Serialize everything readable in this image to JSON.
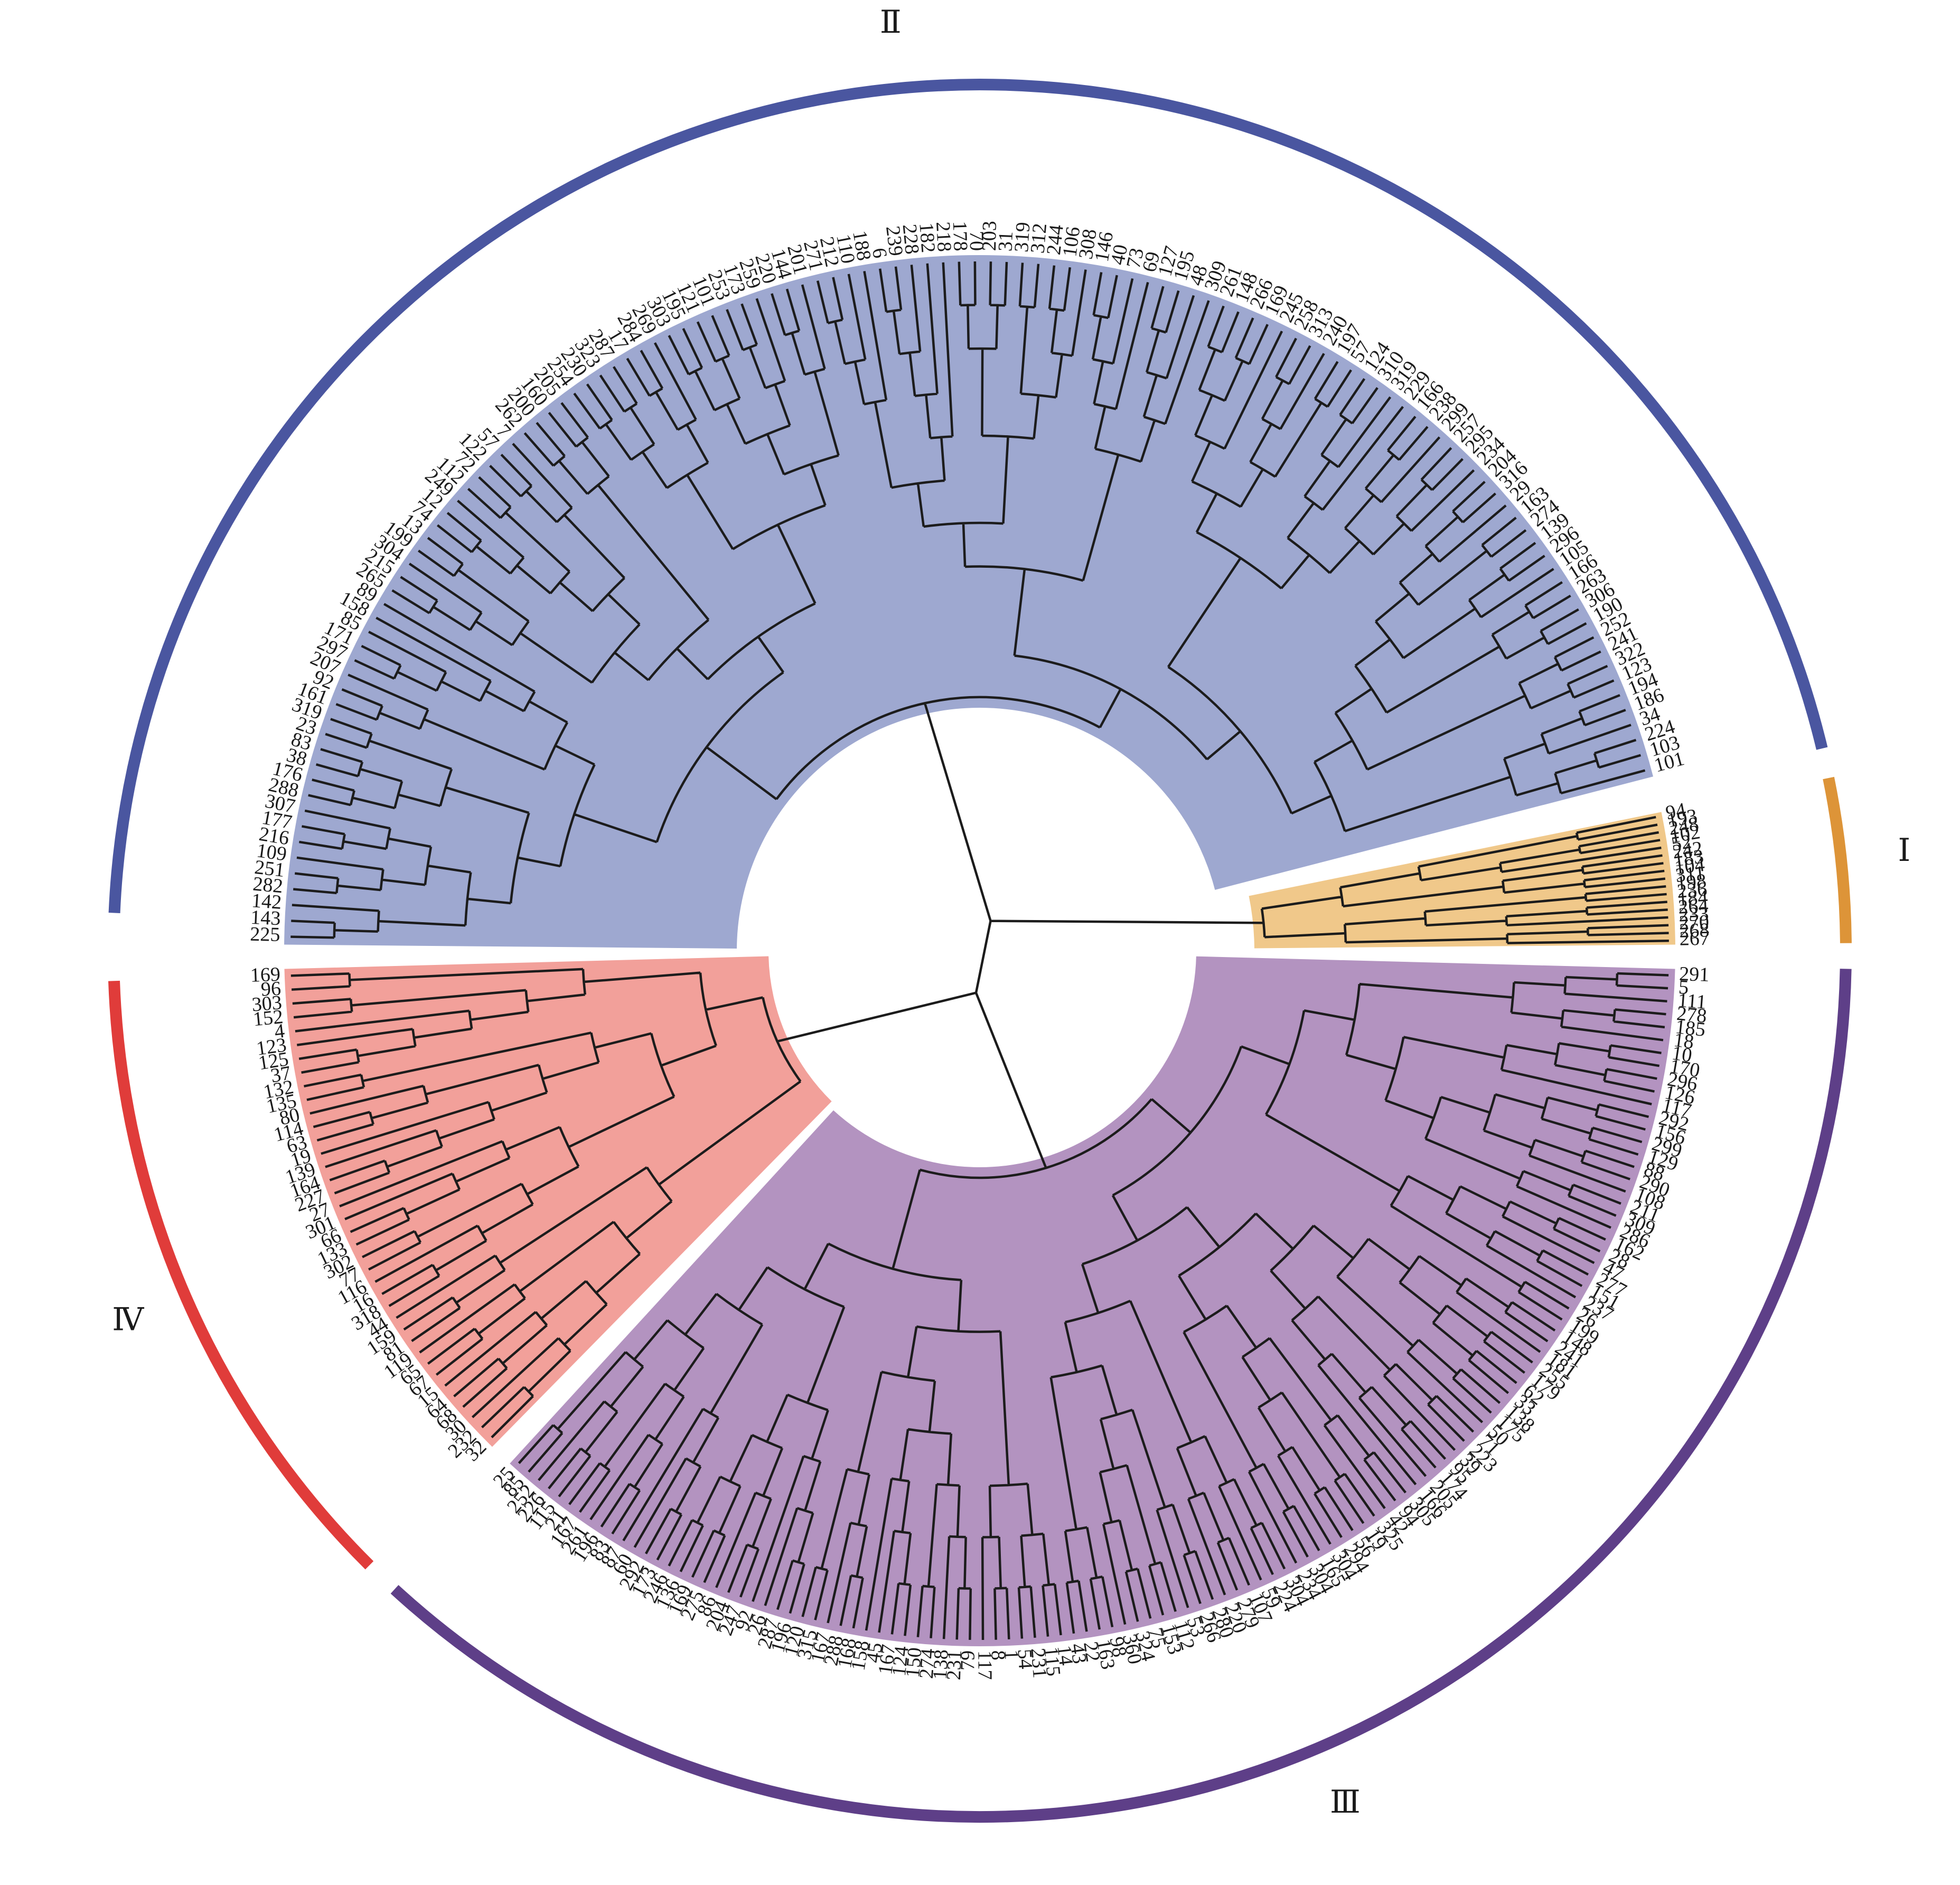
{
  "diagram": {
    "type": "circular-phylogenetic-tree",
    "clusters": [
      {
        "id": "I",
        "label": "Ⅰ",
        "color_fill": "#f0c88a",
        "color_ring": "#dd9438",
        "leaves": [
          "94",
          "193",
          "248",
          "102",
          "52",
          "242",
          "183",
          "104",
          "311",
          "198",
          "236",
          "184",
          "264",
          "233",
          "270",
          "268",
          "267"
        ]
      },
      {
        "id": "II",
        "label": "Ⅱ",
        "color_fill": "#9ea8d0",
        "color_ring": "#4a56a0",
        "leaves": [
          "225",
          "143",
          "142",
          "282",
          "251",
          "109",
          "216",
          "177",
          "307",
          "288",
          "176",
          "38",
          "83",
          "23",
          "319",
          "161",
          "92",
          "207",
          "297",
          "171",
          "85",
          "158",
          "89",
          "265",
          "215",
          "304",
          "199",
          "13",
          "74",
          "12",
          "249",
          "112",
          "72",
          "122",
          "57",
          "7",
          "262",
          "200",
          "160",
          "205",
          "254",
          "230",
          "323",
          "287",
          "17",
          "284",
          "269",
          "303",
          "195",
          "121",
          "101",
          "253",
          "173",
          "259",
          "220",
          "144",
          "201",
          "271",
          "212",
          "110",
          "188",
          "6",
          "239",
          "228",
          "182",
          "218",
          "178",
          "70",
          "203",
          "31",
          "319",
          "312",
          "244",
          "106",
          "308",
          "146",
          "40",
          "73",
          "69",
          "127",
          "195",
          "48",
          "309",
          "261",
          "148",
          "266",
          "169",
          "245",
          "258",
          "313",
          "240",
          "197",
          "57",
          "124",
          "310",
          "319",
          "229",
          "166",
          "238",
          "299",
          "257",
          "295",
          "234",
          "204",
          "316",
          "29",
          "163",
          "274",
          "139",
          "296",
          "105",
          "166",
          "263",
          "306",
          "190",
          "252",
          "241",
          "322",
          "123",
          "194",
          "186",
          "34",
          "224",
          "103",
          "101"
        ]
      },
      {
        "id": "III",
        "label": "Ⅲ",
        "color_fill": "#b393c0",
        "color_ring": "#5e3f88",
        "leaves": [
          "291",
          "5",
          "111",
          "278",
          "185",
          "18",
          "10",
          "170",
          "296",
          "126",
          "117",
          "292",
          "156",
          "299",
          "129",
          "88",
          "290",
          "108",
          "211",
          "309",
          "286",
          "162",
          "28",
          "47",
          "277",
          "151",
          "237",
          "26",
          "199",
          "148",
          "241",
          "181",
          "255",
          "179",
          "62",
          "33",
          "138",
          "175",
          "50",
          "71",
          "223",
          "39",
          "95",
          "174",
          "205",
          "166",
          "305",
          "94",
          "42",
          "325",
          "19",
          "56",
          "294",
          "304",
          "165",
          "304",
          "234",
          "304",
          "224",
          "59",
          "107",
          "279",
          "220",
          "280",
          "266",
          "53",
          "112",
          "153",
          "75",
          "324",
          "360",
          "98",
          "163",
          "22",
          "43",
          "14",
          "115",
          "231",
          "54",
          "1",
          "8",
          "117",
          "79",
          "231",
          "138",
          "274",
          "150",
          "124",
          "167",
          "45",
          "158",
          "168",
          "288",
          "167",
          "315",
          "120",
          "196",
          "287",
          "26",
          "92",
          "247",
          "204",
          "86",
          "275",
          "169",
          "136",
          "246",
          "173",
          "292",
          "60",
          "87",
          "83",
          "196",
          "261",
          "167",
          "21",
          "115",
          "226",
          "252",
          "85",
          "25"
        ]
      },
      {
        "id": "IV",
        "label": "Ⅳ",
        "color_fill": "#f2a09a",
        "color_ring": "#e03c3a",
        "leaves": [
          "32",
          "232",
          "30",
          "68",
          "64",
          "15",
          "67",
          "65",
          "119",
          "81",
          "159",
          "44",
          "318",
          "16",
          "116",
          "77",
          "302",
          "133",
          "66",
          "301",
          "27",
          "227",
          "164",
          "139",
          "19",
          "63",
          "114",
          "80",
          "135",
          "132",
          "37",
          "125",
          "123",
          "4",
          "152",
          "303",
          "96",
          "169"
        ]
      }
    ]
  }
}
